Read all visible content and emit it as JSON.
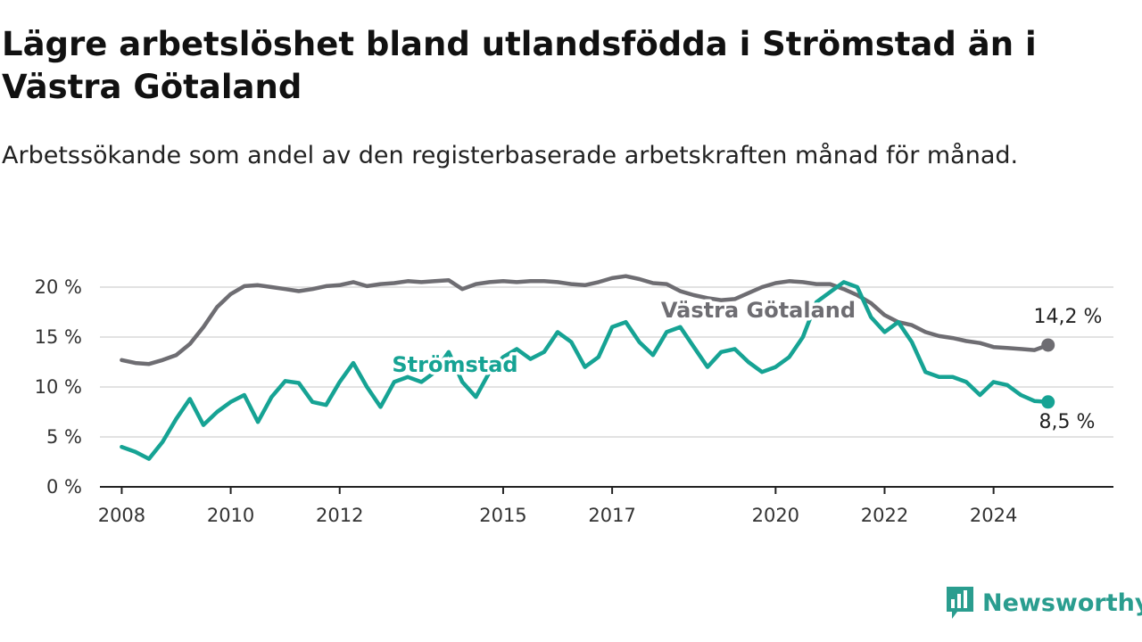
{
  "title": "Lägre arbetslöshet bland utlandsfödda i Strömstad än i Västra Götaland",
  "subtitle": "Arbetssökande som andel av den registerbaserade arbetskraften månad för månad.",
  "brand": {
    "name": "Newsworthy",
    "icon": "newsworthy-logo-icon"
  },
  "colors": {
    "stromstad": "#16a394",
    "vastra_gotaland": "#6e6d72",
    "grid": "#d9d9d9",
    "axis": "#222222"
  },
  "chart_data": {
    "type": "line",
    "x_tick_labels": [
      "2008",
      "2010",
      "2012",
      "2015",
      "2017",
      "2020",
      "2022",
      "2024"
    ],
    "y_tick_labels": [
      "0 %",
      "5 %",
      "10 %",
      "15 %",
      "20 %"
    ],
    "ylim": [
      0,
      20
    ],
    "grid": true,
    "series": [
      {
        "name": "Västra Götaland",
        "end_label": "14,2 %",
        "x": [
          "2008-01",
          "2008-04",
          "2008-07",
          "2008-10",
          "2009-01",
          "2009-04",
          "2009-07",
          "2009-10",
          "2010-01",
          "2010-04",
          "2010-07",
          "2010-10",
          "2011-01",
          "2011-04",
          "2011-07",
          "2011-10",
          "2012-01",
          "2012-04",
          "2012-07",
          "2012-10",
          "2013-01",
          "2013-04",
          "2013-07",
          "2013-10",
          "2014-01",
          "2014-04",
          "2014-07",
          "2014-10",
          "2015-01",
          "2015-04",
          "2015-07",
          "2015-10",
          "2016-01",
          "2016-04",
          "2016-07",
          "2016-10",
          "2017-01",
          "2017-04",
          "2017-07",
          "2017-10",
          "2018-01",
          "2018-04",
          "2018-07",
          "2018-10",
          "2019-01",
          "2019-04",
          "2019-07",
          "2019-10",
          "2020-01",
          "2020-04",
          "2020-07",
          "2020-10",
          "2021-01",
          "2021-04",
          "2021-07",
          "2021-10",
          "2022-01",
          "2022-04",
          "2022-07",
          "2022-10",
          "2023-01",
          "2023-04",
          "2023-07",
          "2023-10",
          "2024-01",
          "2024-04",
          "2024-07",
          "2024-10",
          "2025-01"
        ],
        "values": [
          12.7,
          12.4,
          12.3,
          12.7,
          13.2,
          14.3,
          16.0,
          18.0,
          19.3,
          20.1,
          20.2,
          20.0,
          19.8,
          19.6,
          19.8,
          20.1,
          20.2,
          20.5,
          20.1,
          20.3,
          20.4,
          20.6,
          20.5,
          20.6,
          20.7,
          19.8,
          20.3,
          20.5,
          20.6,
          20.5,
          20.6,
          20.6,
          20.5,
          20.3,
          20.2,
          20.5,
          20.9,
          21.1,
          20.8,
          20.4,
          20.3,
          19.6,
          19.2,
          18.9,
          18.7,
          18.8,
          19.4,
          20.0,
          20.4,
          20.6,
          20.5,
          20.3,
          20.3,
          19.8,
          19.2,
          18.4,
          17.2,
          16.5,
          16.2,
          15.5,
          15.1,
          14.9,
          14.6,
          14.4,
          14.0,
          13.9,
          13.8,
          13.7,
          14.2
        ]
      },
      {
        "name": "Strömstad",
        "end_label": "8,5 %",
        "x": [
          "2008-01",
          "2008-04",
          "2008-07",
          "2008-10",
          "2009-01",
          "2009-04",
          "2009-07",
          "2009-10",
          "2010-01",
          "2010-04",
          "2010-07",
          "2010-10",
          "2011-01",
          "2011-04",
          "2011-07",
          "2011-10",
          "2012-01",
          "2012-04",
          "2012-07",
          "2012-10",
          "2013-01",
          "2013-04",
          "2013-07",
          "2013-10",
          "2014-01",
          "2014-04",
          "2014-07",
          "2014-10",
          "2015-01",
          "2015-04",
          "2015-07",
          "2015-10",
          "2016-01",
          "2016-04",
          "2016-07",
          "2016-10",
          "2017-01",
          "2017-04",
          "2017-07",
          "2017-10",
          "2018-01",
          "2018-04",
          "2018-07",
          "2018-10",
          "2019-01",
          "2019-04",
          "2019-07",
          "2019-10",
          "2020-01",
          "2020-04",
          "2020-07",
          "2020-10",
          "2021-01",
          "2021-04",
          "2021-07",
          "2021-10",
          "2022-01",
          "2022-04",
          "2022-07",
          "2022-10",
          "2023-01",
          "2023-04",
          "2023-07",
          "2023-10",
          "2024-01",
          "2024-04",
          "2024-07",
          "2024-10",
          "2025-01"
        ],
        "values": [
          4.0,
          3.5,
          2.8,
          4.5,
          6.8,
          8.8,
          6.2,
          7.5,
          8.5,
          9.2,
          6.5,
          9.0,
          10.6,
          10.4,
          8.5,
          8.2,
          10.5,
          12.4,
          10.0,
          8.0,
          10.5,
          11.0,
          10.5,
          11.5,
          13.5,
          10.5,
          9.0,
          11.5,
          13.0,
          13.8,
          12.8,
          13.5,
          15.5,
          14.5,
          12.0,
          13.0,
          16.0,
          16.5,
          14.5,
          13.2,
          15.5,
          16.0,
          14.0,
          12.0,
          13.5,
          13.8,
          12.5,
          11.5,
          12.0,
          13.0,
          15.0,
          18.5,
          19.5,
          20.5,
          20.0,
          17.0,
          15.5,
          16.5,
          14.5,
          11.5,
          11.0,
          11.0,
          10.5,
          9.2,
          10.5,
          10.2,
          9.2,
          8.6,
          8.5
        ]
      }
    ]
  }
}
